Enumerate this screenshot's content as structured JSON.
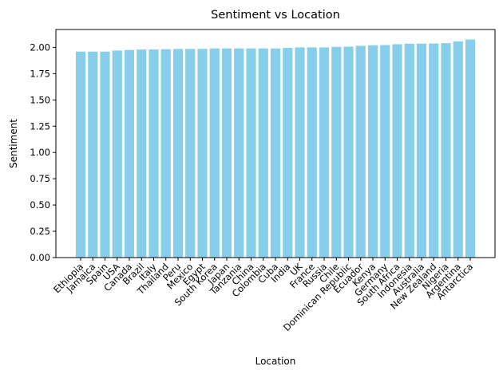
{
  "chart_data": {
    "type": "bar",
    "title": "Sentiment vs Location",
    "xlabel": "Location",
    "ylabel": "Sentiment",
    "ylim": [
      0,
      2.17
    ],
    "yticks": [
      "0.00",
      "0.25",
      "0.50",
      "0.75",
      "1.00",
      "1.25",
      "1.50",
      "1.75",
      "2.00"
    ],
    "grid": false,
    "bar_color": "#87CEEB",
    "categories": [
      "Ethiopia",
      "Jamaica",
      "Spain",
      "USA",
      "Canada",
      "Brazil",
      "Italy",
      "Thailand",
      "Peru",
      "Mexico",
      "Egypt",
      "South Korea",
      "Japan",
      "Tanzania",
      "China",
      "Colombia",
      "Cuba",
      "India",
      "UK",
      "France",
      "Russia",
      "Chile",
      "Dominican Republic",
      "Ecuador",
      "Kenya",
      "Germany",
      "South Africa",
      "Indonesia",
      "Australia",
      "New Zealand",
      "Nigeria",
      "Argentina",
      "Antarctica"
    ],
    "values": [
      1.96,
      1.96,
      1.96,
      1.97,
      1.975,
      1.98,
      1.98,
      1.983,
      1.985,
      1.985,
      1.986,
      1.99,
      1.99,
      1.99,
      1.99,
      1.99,
      1.99,
      1.995,
      2.0,
      2.0,
      2.0,
      2.005,
      2.007,
      2.015,
      2.02,
      2.022,
      2.03,
      2.035,
      2.035,
      2.037,
      2.04,
      2.057,
      2.075
    ]
  }
}
